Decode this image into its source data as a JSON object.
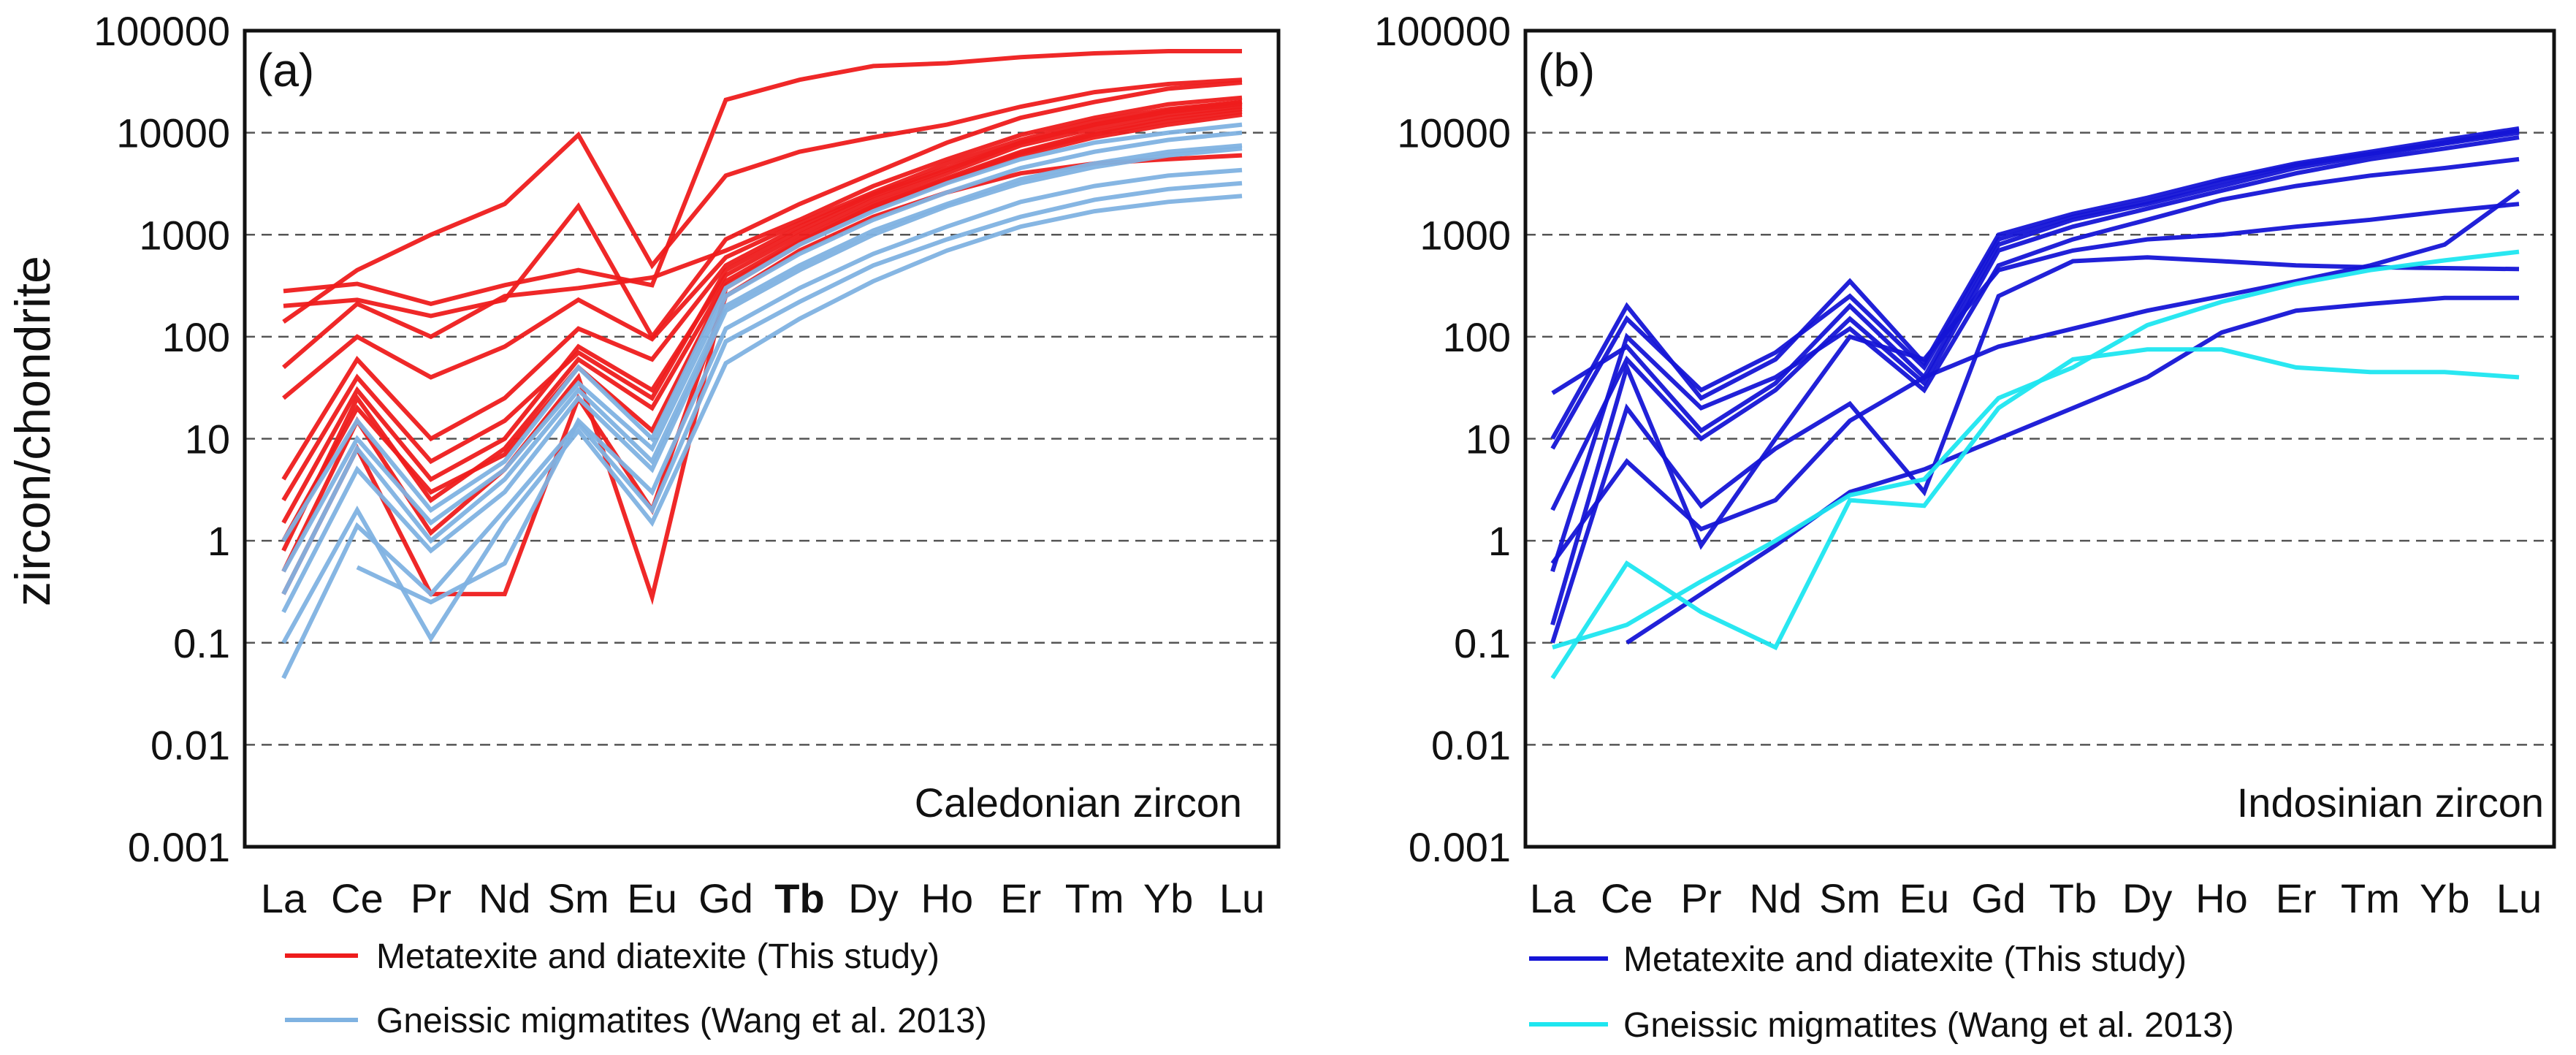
{
  "figure": {
    "y_axis_label": "zircon/chondrite",
    "legend_gap": 0
  },
  "chart_data": [
    {
      "type": "line",
      "panel_label": "(a)",
      "annotation": "Caledonian zircon",
      "yscale": "log",
      "ylim": [
        0.001,
        100000
      ],
      "ylabel": "zircon/chondrite",
      "y_ticks": [
        "0.001",
        "0.01",
        "0.1",
        "1",
        "10",
        "100",
        "1000",
        "10000",
        "100000"
      ],
      "categories": [
        "La",
        "Ce",
        "Pr",
        "Nd",
        "Sm",
        "Eu",
        "Gd",
        "Tb",
        "Dy",
        "Ho",
        "Er",
        "Tm",
        "Yb",
        "Lu"
      ],
      "bold_categories": [
        "Tb"
      ],
      "grid": "horizontal dashed",
      "legend": [
        {
          "label": "Metatexite and diatexite (This study)",
          "color": "#ee1c1c"
        },
        {
          "label": "Gneissic migmatites (Wang et al. 2013)",
          "color": "#7fb2e1"
        }
      ],
      "series": [
        {
          "name": "Metatexite and diatexite (This study)",
          "color": "#ee1c1c",
          "values": [
            280,
            330,
            210,
            320,
            450,
            320,
            21000,
            33000,
            45000,
            48000,
            55000,
            60000,
            63000,
            63000
          ]
        },
        {
          "name": "Metatexite and diatexite (This study)",
          "color": "#ee1c1c",
          "values": [
            140,
            450,
            1000,
            2000,
            9500,
            500,
            3800,
            6500,
            9000,
            12000,
            18000,
            25000,
            30000,
            33000
          ]
        },
        {
          "name": "Metatexite and diatexite (This study)",
          "color": "#ee1c1c",
          "values": [
            200,
            230,
            160,
            230,
            1900,
            100,
            900,
            2000,
            4000,
            8000,
            14000,
            20000,
            27000,
            31000
          ]
        },
        {
          "name": "Metatexite and diatexite (This study)",
          "color": "#ee1c1c",
          "values": [
            50,
            210,
            100,
            250,
            300,
            380,
            700,
            1400,
            3000,
            5500,
            9500,
            14000,
            19000,
            22000
          ]
        },
        {
          "name": "Metatexite and diatexite (This study)",
          "color": "#ee1c1c",
          "values": [
            25,
            100,
            40,
            80,
            230,
            95,
            600,
            1300,
            2600,
            5000,
            8500,
            13000,
            17000,
            20000
          ]
        },
        {
          "name": "Metatexite and diatexite (This study)",
          "color": "#ee1c1c",
          "values": [
            4,
            60,
            10,
            25,
            120,
            60,
            500,
            1200,
            2500,
            4500,
            8000,
            12000,
            16000,
            19000
          ]
        },
        {
          "name": "Metatexite and diatexite (This study)",
          "color": "#ee1c1c",
          "values": [
            1.5,
            30,
            4,
            10,
            80,
            30,
            400,
            1000,
            2200,
            4000,
            7500,
            11000,
            15000,
            18000
          ]
        },
        {
          "name": "Metatexite and diatexite (This study)",
          "color": "#ee1c1c",
          "values": [
            0.8,
            25,
            2.5,
            8,
            60,
            20,
            350,
            900,
            2000,
            3600,
            6500,
            10000,
            14000,
            17000
          ]
        },
        {
          "name": "Metatexite and diatexite (This study)",
          "color": "#ee1c1c",
          "values": [
            0.5,
            15,
            1.2,
            5,
            40,
            0.28,
            300,
            800,
            1800,
            3300,
            6000,
            9000,
            12000,
            15000
          ]
        },
        {
          "name": "Metatexite and diatexite (This study)",
          "color": "#ee1c1c",
          "values": [
            0.3,
            8,
            0.3,
            0.3,
            25,
            2,
            250,
            700,
            1500,
            2600,
            4000,
            5000,
            5500,
            6000
          ]
        },
        {
          "name": "Metatexite and diatexite (This study)",
          "color": "#ee1c1c",
          "values": [
            2.5,
            40,
            6,
            15,
            70,
            25,
            450,
            1100,
            2400,
            4300,
            8000,
            12000,
            16500,
            20000
          ]
        },
        {
          "name": "Metatexite and diatexite (This study)",
          "color": "#ee1c1c",
          "values": [
            1,
            20,
            3,
            7,
            50,
            12,
            320,
            850,
            1900,
            3500,
            6300,
            9600,
            13000,
            16000
          ]
        },
        {
          "name": "Gneissic migmatites (Wang et al. 2013)",
          "color": "#7fb2e1",
          "values": [
            0.1,
            2,
            0.11,
            1.5,
            12,
            1.5,
            55,
            150,
            350,
            700,
            1200,
            1700,
            2100,
            2400
          ]
        },
        {
          "name": "Gneissic migmatites (Wang et al. 2013)",
          "color": "#7fb2e1",
          "values": [
            0.045,
            1.4,
            0.3,
            2,
            14,
            2,
            90,
            220,
            500,
            900,
            1500,
            2200,
            2800,
            3200
          ]
        },
        {
          "name": "Gneissic migmatites (Wang et al. 2013)",
          "color": "#7fb2e1",
          "values": [
            null,
            0.55,
            0.25,
            0.6,
            15,
            3,
            120,
            300,
            650,
            1200,
            2100,
            3000,
            3800,
            4300
          ]
        },
        {
          "name": "Gneissic migmatites (Wang et al. 2013)",
          "color": "#7fb2e1",
          "values": [
            0.3,
            8,
            1,
            4,
            30,
            6,
            200,
            500,
            1100,
            2000,
            3500,
            5000,
            6500,
            7500
          ]
        },
        {
          "name": "Gneissic migmatites (Wang et al. 2013)",
          "color": "#7fb2e1",
          "values": [
            1,
            15,
            2,
            6,
            50,
            10,
            300,
            800,
            1700,
            3200,
            5500,
            8000,
            10000,
            12000
          ]
        },
        {
          "name": "Gneissic migmatites (Wang et al. 2013)",
          "color": "#7fb2e1",
          "values": [
            0.5,
            10,
            1.5,
            5,
            35,
            8,
            250,
            650,
            1400,
            2600,
            4500,
            6500,
            8500,
            10000
          ]
        },
        {
          "name": "Gneissic migmatites (Wang et al. 2013)",
          "color": "#7fb2e1",
          "values": [
            0.2,
            5,
            0.8,
            3,
            25,
            5,
            180,
            450,
            1000,
            1900,
            3200,
            4600,
            6000,
            7000
          ]
        }
      ]
    },
    {
      "type": "line",
      "panel_label": "(b)",
      "annotation": "Indosinian zircon",
      "yscale": "log",
      "ylim": [
        0.001,
        100000
      ],
      "y_ticks": [
        "0.001",
        "0.01",
        "0.1",
        "1",
        "10",
        "100",
        "1000",
        "10000",
        "100000"
      ],
      "categories": [
        "La",
        "Ce",
        "Pr",
        "Nd",
        "Sm",
        "Eu",
        "Gd",
        "Tb",
        "Dy",
        "Ho",
        "Er",
        "Tm",
        "Yb",
        "Lu"
      ],
      "bold_categories": [],
      "grid": "horizontal dashed",
      "legend": [
        {
          "label": "Metatexite and diatexite  (This study)",
          "color": "#1515d6"
        },
        {
          "label": "Gneissic migmatites (Wang et al. 2013)",
          "color": "#1ee6f0"
        }
      ],
      "series": [
        {
          "name": "Metatexite and diatexite  (This study)",
          "color": "#1515d6",
          "values": [
            10,
            200,
            25,
            60,
            350,
            55,
            1000,
            1600,
            2300,
            3500,
            5000,
            6500,
            8500,
            11000
          ]
        },
        {
          "name": "Metatexite and diatexite  (This study)",
          "color": "#1515d6",
          "values": [
            8,
            150,
            30,
            70,
            250,
            50,
            900,
            1500,
            2100,
            3300,
            4800,
            6200,
            8000,
            10500
          ]
        },
        {
          "name": "Metatexite and diatexite  (This study)",
          "color": "#1515d6",
          "values": [
            28,
            80,
            12,
            35,
            200,
            40,
            800,
            1400,
            2000,
            3000,
            4500,
            6000,
            7800,
            10000
          ]
        },
        {
          "name": "Metatexite and diatexite  (This study)",
          "color": "#1515d6",
          "values": [
            2,
            60,
            10,
            30,
            150,
            35,
            700,
            1200,
            1800,
            2700,
            4000,
            5500,
            7000,
            9000
          ]
        },
        {
          "name": "Metatexite and diatexite  (This study)",
          "color": "#1515d6",
          "values": [
            0.5,
            100,
            20,
            40,
            120,
            30,
            500,
            900,
            1400,
            2200,
            3000,
            3800,
            4500,
            5500
          ]
        },
        {
          "name": "Metatexite and diatexite  (This study)",
          "color": "#1515d6",
          "values": [
            0.15,
            50,
            0.9,
            10,
            100,
            60,
            450,
            700,
            900,
            1000,
            1200,
            1400,
            1700,
            2000
          ]
        },
        {
          "name": "Metatexite and diatexite  (This study)",
          "color": "#1515d6",
          "values": [
            0.1,
            20,
            2.2,
            8,
            22,
            3,
            250,
            550,
            600,
            550,
            500,
            480,
            470,
            460
          ]
        },
        {
          "name": "Metatexite and diatexite  (This study)",
          "color": "#1515d6",
          "values": [
            0.6,
            6,
            1.3,
            2.5,
            15,
            40,
            80,
            120,
            180,
            250,
            350,
            500,
            800,
            2700
          ]
        },
        {
          "name": "Metatexite and diatexite  (This study)",
          "color": "#1515d6",
          "values": [
            null,
            0.1,
            0.3,
            0.9,
            3,
            5,
            10,
            20,
            40,
            110,
            180,
            210,
            240,
            240
          ]
        },
        {
          "name": "Gneissic migmatites (Wang et al. 2013)",
          "color": "#1ee6f0",
          "values": [
            0.045,
            0.6,
            0.2,
            0.09,
            2.5,
            2.2,
            20,
            60,
            75,
            75,
            50,
            45,
            45,
            40
          ]
        },
        {
          "name": "Gneissic migmatites (Wang et al. 2013)",
          "color": "#1ee6f0",
          "values": [
            0.09,
            0.15,
            0.4,
            1,
            2.8,
            4,
            25,
            50,
            130,
            220,
            330,
            450,
            560,
            680
          ]
        }
      ]
    }
  ]
}
